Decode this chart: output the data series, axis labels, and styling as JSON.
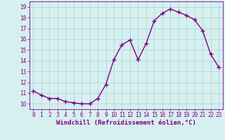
{
  "x": [
    0,
    1,
    2,
    3,
    4,
    5,
    6,
    7,
    8,
    9,
    10,
    11,
    12,
    13,
    14,
    15,
    16,
    17,
    18,
    19,
    20,
    21,
    22,
    23
  ],
  "y": [
    11.2,
    10.8,
    10.5,
    10.5,
    10.2,
    10.1,
    10.0,
    10.0,
    10.5,
    11.8,
    14.1,
    15.5,
    15.9,
    14.1,
    15.6,
    17.7,
    18.4,
    18.8,
    18.5,
    18.2,
    17.8,
    16.8,
    14.6,
    13.4
  ],
  "line_color": "#800080",
  "marker": "+",
  "marker_size": 4,
  "line_width": 1.0,
  "bg_color": "#d6f0f0",
  "grid_color": "#b0d8d8",
  "xlabel": "Windchill (Refroidissement éolien,°C)",
  "ylabel_ticks": [
    10,
    11,
    12,
    13,
    14,
    15,
    16,
    17,
    18,
    19
  ],
  "xlim": [
    -0.5,
    23.5
  ],
  "ylim": [
    9.5,
    19.5
  ],
  "tick_fontsize": 5.5,
  "label_fontsize": 6.5,
  "label_color": "#800080",
  "tick_color": "#800080"
}
